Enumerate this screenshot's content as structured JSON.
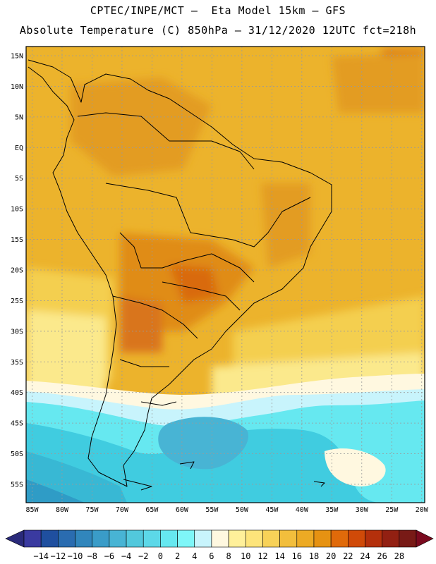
{
  "title": {
    "line1": "CPTEC/INPE/MCT –  Eta Model 15km – GFS",
    "line2": "Absolute Temperature (C) 850hPa – 31/12/2020 12UTC fct=218h"
  },
  "map": {
    "lat_labels": [
      "15N",
      "10N",
      "5N",
      "EQ",
      "5S",
      "10S",
      "15S",
      "20S",
      "25S",
      "30S",
      "35S",
      "40S",
      "45S",
      "50S",
      "55S"
    ],
    "lon_labels": [
      "85W",
      "80W",
      "75W",
      "70W",
      "65W",
      "60W",
      "55W",
      "50W",
      "45W",
      "40W",
      "35W",
      "30W",
      "25W",
      "20W"
    ],
    "lat_range": [
      -58,
      16.5
    ],
    "lon_range": [
      -86,
      -19.5
    ]
  },
  "colorbar": {
    "labels": [
      "-14",
      "-12",
      "-10",
      "-8",
      "-6",
      "-4",
      "-2",
      "0",
      "2",
      "4",
      "6",
      "8",
      "10",
      "12",
      "14",
      "16",
      "18",
      "20",
      "22",
      "24",
      "26",
      "28"
    ],
    "colors": [
      "#3a3aa0",
      "#1f4f9f",
      "#2a6cb0",
      "#3186bc",
      "#3a9cc8",
      "#48b4d4",
      "#52c8dc",
      "#5cd8e8",
      "#66e8f0",
      "#7ef6f8",
      "#c8f4fc",
      "#fff8e0",
      "#fff09a",
      "#fde47a",
      "#f8d258",
      "#f2be3c",
      "#ecaa24",
      "#e69212",
      "#e06a0a",
      "#d04a08",
      "#b4300c",
      "#922012",
      "#781a16"
    ],
    "low_end_color": "#2a2a7a",
    "high_end_color": "#7a0a1e"
  },
  "colors": {
    "warm_bg": "#ecb32c",
    "hot": "#e08c18",
    "very_hot": "#d96a10",
    "mild": "#f4cf50",
    "cool_yellow": "#fbe98c",
    "pale": "#fff8e0",
    "light_cyan": "#c8f4fc",
    "cyan": "#66e8f0",
    "mid_cyan": "#40cce0",
    "deep_cyan": "#38b8d4",
    "grid": "#9a9a9a",
    "coast": "#000000"
  }
}
